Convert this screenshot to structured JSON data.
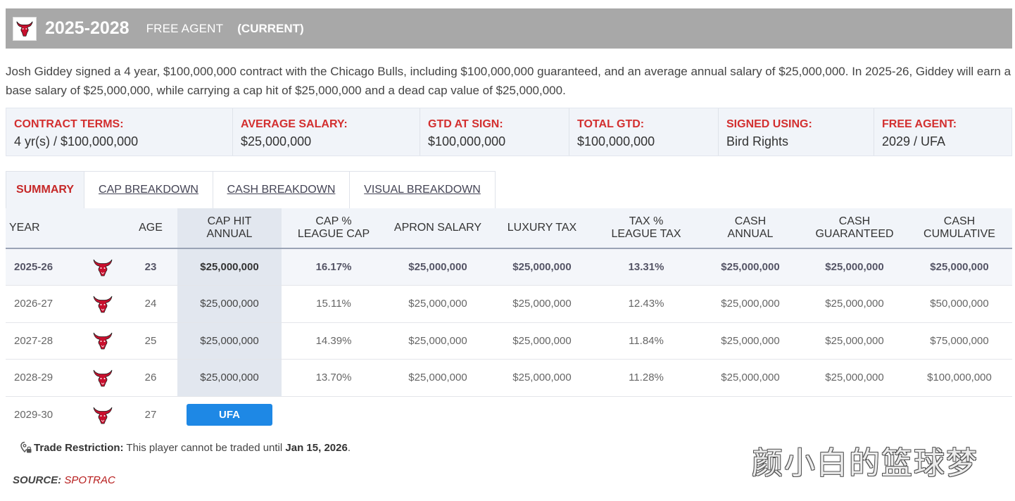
{
  "header": {
    "years": "2025-2028",
    "status": "FREE AGENT",
    "current": "(CURRENT)"
  },
  "description": "Josh Giddey signed a 4 year, $100,000,000 contract with the Chicago Bulls, including $100,000,000 guaranteed, and an average annual salary of $25,000,000. In 2025-26, Giddey will earn a base salary of $25,000,000, while carrying a cap hit of $25,000,000 and a dead cap value of $25,000,000.",
  "terms": [
    {
      "label": "CONTRACT TERMS:",
      "value": "4 yr(s) / $100,000,000"
    },
    {
      "label": "AVERAGE SALARY:",
      "value": "$25,000,000"
    },
    {
      "label": "GTD AT SIGN:",
      "value": "$100,000,000"
    },
    {
      "label": "TOTAL GTD:",
      "value": "$100,000,000"
    },
    {
      "label": "SIGNED USING:",
      "value": "Bird Rights"
    },
    {
      "label": "FREE AGENT:",
      "value": "2029 / UFA"
    }
  ],
  "tabs": [
    "SUMMARY",
    "CAP BREAKDOWN",
    "CASH BREAKDOWN",
    "VISUAL BREAKDOWN"
  ],
  "table": {
    "headers": {
      "year": "YEAR",
      "age": "AGE",
      "cap_hit_1": "CAP HIT",
      "cap_hit_2": "ANNUAL",
      "cap_pct_1": "CAP %",
      "cap_pct_2": "LEAGUE CAP",
      "apron": "APRON SALARY",
      "lux": "LUXURY TAX",
      "tax_pct_1": "TAX %",
      "tax_pct_2": "LEAGUE TAX",
      "cash_ann_1": "CASH",
      "cash_ann_2": "ANNUAL",
      "cash_gtd_1": "CASH",
      "cash_gtd_2": "GUARANTEED",
      "cash_cum_1": "CASH",
      "cash_cum_2": "CUMULATIVE"
    },
    "rows": [
      {
        "year": "2025-26",
        "age": "23",
        "cap_hit": "$25,000,000",
        "cap_pct": "16.17%",
        "apron": "$25,000,000",
        "lux": "$25,000,000",
        "tax_pct": "13.31%",
        "cash_ann": "$25,000,000",
        "cash_gtd": "$25,000,000",
        "cash_cum": "$25,000,000"
      },
      {
        "year": "2026-27",
        "age": "24",
        "cap_hit": "$25,000,000",
        "cap_pct": "15.11%",
        "apron": "$25,000,000",
        "lux": "$25,000,000",
        "tax_pct": "12.43%",
        "cash_ann": "$25,000,000",
        "cash_gtd": "$25,000,000",
        "cash_cum": "$50,000,000"
      },
      {
        "year": "2027-28",
        "age": "25",
        "cap_hit": "$25,000,000",
        "cap_pct": "14.39%",
        "apron": "$25,000,000",
        "lux": "$25,000,000",
        "tax_pct": "11.84%",
        "cash_ann": "$25,000,000",
        "cash_gtd": "$25,000,000",
        "cash_cum": "$75,000,000"
      },
      {
        "year": "2028-29",
        "age": "26",
        "cap_hit": "$25,000,000",
        "cap_pct": "13.70%",
        "apron": "$25,000,000",
        "lux": "$25,000,000",
        "tax_pct": "11.28%",
        "cash_ann": "$25,000,000",
        "cash_gtd": "$25,000,000",
        "cash_cum": "$100,000,000"
      }
    ],
    "fa_row": {
      "year": "2029-30",
      "age": "27",
      "badge": "UFA"
    }
  },
  "trade": {
    "label": "Trade Restriction:",
    "text": " This player cannot be traded until ",
    "date": "Jan 15, 2026",
    "end": "."
  },
  "source": {
    "label": "SOURCE:",
    "name": "SPOTRAC"
  },
  "watermark": "颜小白的篮球梦",
  "colors": {
    "accent_red": "#d32f2f",
    "ufa_blue": "#1e88e5",
    "header_gray": "#a8a8a8"
  },
  "icons": {
    "team_logo": "chicago-bulls-logo-icon",
    "trade": "lock-pin-icon"
  }
}
